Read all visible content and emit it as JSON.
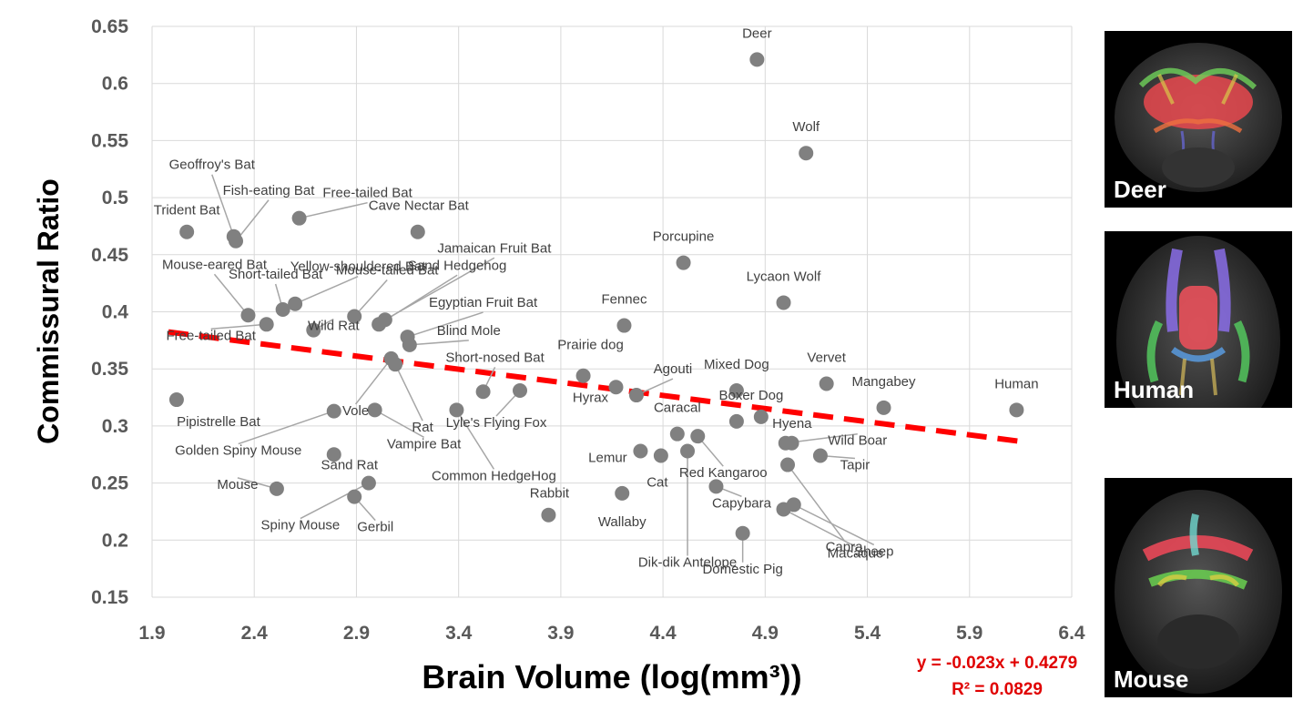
{
  "chart_data": {
    "type": "scatter",
    "xlabel": "Brain Volume (log(mm³))",
    "ylabel": "Commissural Ratio",
    "xlim": [
      1.9,
      6.4
    ],
    "ylim": [
      0.15,
      0.65
    ],
    "x_ticks": [
      "1.9",
      "2.4",
      "2.9",
      "3.4",
      "3.9",
      "4.4",
      "4.9",
      "5.4",
      "5.9",
      "6.4"
    ],
    "y_ticks": [
      "0.15",
      "0.2",
      "0.25",
      "0.3",
      "0.35",
      "0.4",
      "0.45",
      "0.5",
      "0.55",
      "0.6",
      "0.65"
    ],
    "grid": true,
    "point_color": "#808080",
    "trendline": {
      "slope": -0.023,
      "intercept": 0.4279,
      "x_range": [
        1.98,
        6.14
      ],
      "color": "#ff0000",
      "style": "dashed",
      "equation": "y = -0.023x + 0.4279",
      "r2": "R² = 0.0829"
    },
    "points": [
      {
        "name": "Deer",
        "x": 4.86,
        "y": 0.621
      },
      {
        "name": "Wolf",
        "x": 5.1,
        "y": 0.539
      },
      {
        "name": "Porcupine",
        "x": 4.5,
        "y": 0.443
      },
      {
        "name": "Lycaon Wolf",
        "x": 4.99,
        "y": 0.408
      },
      {
        "name": "Fennec",
        "x": 4.21,
        "y": 0.388
      },
      {
        "name": "Prairie dog",
        "x": 4.01,
        "y": 0.344
      },
      {
        "name": "Hyrax",
        "x": 4.17,
        "y": 0.334
      },
      {
        "name": "Agouti",
        "x": 4.27,
        "y": 0.327
      },
      {
        "name": "Mixed Dog",
        "x": 4.76,
        "y": 0.331
      },
      {
        "name": "Boxer Dog",
        "x": 4.76,
        "y": 0.304
      },
      {
        "name": "Hyena",
        "x": 4.88,
        "y": 0.308
      },
      {
        "name": "Vervet",
        "x": 5.2,
        "y": 0.337
      },
      {
        "name": "Mangabey",
        "x": 5.48,
        "y": 0.316
      },
      {
        "name": "Human",
        "x": 6.13,
        "y": 0.314
      },
      {
        "name": "Caracal",
        "x": 4.47,
        "y": 0.293
      },
      {
        "name": "Red Kangaroo",
        "x": 4.57,
        "y": 0.291
      },
      {
        "name": "Lemur",
        "x": 4.29,
        "y": 0.278
      },
      {
        "name": "Cat",
        "x": 4.39,
        "y": 0.274
      },
      {
        "name": "Dik-dik Antelope",
        "x": 4.52,
        "y": 0.278
      },
      {
        "name": "Wild Boar",
        "x": 5.0,
        "y": 0.285
      },
      {
        "name": "Wild Boar (2)",
        "x": 5.03,
        "y": 0.285
      },
      {
        "name": "Tapir",
        "x": 5.17,
        "y": 0.274
      },
      {
        "name": "Capra",
        "x": 5.01,
        "y": 0.266
      },
      {
        "name": "Capybara",
        "x": 4.66,
        "y": 0.247
      },
      {
        "name": "Wallaby",
        "x": 4.2,
        "y": 0.241
      },
      {
        "name": "Sheep",
        "x": 5.04,
        "y": 0.231
      },
      {
        "name": "Macaque",
        "x": 4.99,
        "y": 0.227
      },
      {
        "name": "Domestic Pig",
        "x": 4.79,
        "y": 0.206
      },
      {
        "name": "Rabbit",
        "x": 3.84,
        "y": 0.222
      },
      {
        "name": "Trident Bat",
        "x": 2.07,
        "y": 0.47
      },
      {
        "name": "Geoffroy's Bat",
        "x": 2.3,
        "y": 0.466
      },
      {
        "name": "Fish-eating Bat",
        "x": 2.31,
        "y": 0.462
      },
      {
        "name": "Free-tailed Bat",
        "x": 2.62,
        "y": 0.482
      },
      {
        "name": "Cave Nectar Bat",
        "x": 3.2,
        "y": 0.47
      },
      {
        "name": "Mouse-eared Bat",
        "x": 2.37,
        "y": 0.397
      },
      {
        "name": "Short-tailed Bat",
        "x": 2.54,
        "y": 0.402
      },
      {
        "name": "Yellow-shouldered Bat",
        "x": 2.6,
        "y": 0.407
      },
      {
        "name": "Mouse-tailed Bat",
        "x": 2.89,
        "y": 0.396
      },
      {
        "name": "Jamaican Fruit Bat",
        "x": 3.04,
        "y": 0.393
      },
      {
        "name": "Sand Hedgehog",
        "x": 3.01,
        "y": 0.389
      },
      {
        "name": "Egyptian Fruit Bat",
        "x": 3.15,
        "y": 0.378
      },
      {
        "name": "Blind Mole",
        "x": 3.16,
        "y": 0.371
      },
      {
        "name": "Free-tailed Bat (2)",
        "x": 2.46,
        "y": 0.389
      },
      {
        "name": "Wild Rat",
        "x": 2.69,
        "y": 0.384
      },
      {
        "name": "Vole",
        "x": 3.07,
        "y": 0.359
      },
      {
        "name": "Rat",
        "x": 3.09,
        "y": 0.354
      },
      {
        "name": "Short-nosed Bat",
        "x": 3.52,
        "y": 0.33
      },
      {
        "name": "Lyle's Flying Fox",
        "x": 3.7,
        "y": 0.331
      },
      {
        "name": "Common HedgeHog",
        "x": 3.39,
        "y": 0.314
      },
      {
        "name": "Pipistrelle Bat",
        "x": 2.02,
        "y": 0.323
      },
      {
        "name": "Golden Spiny Mouse",
        "x": 2.79,
        "y": 0.313
      },
      {
        "name": "Vampire Bat",
        "x": 2.99,
        "y": 0.314
      },
      {
        "name": "Sand Rat",
        "x": 2.79,
        "y": 0.275
      },
      {
        "name": "Spiny Mouse",
        "x": 2.96,
        "y": 0.25
      },
      {
        "name": "Gerbil",
        "x": 2.89,
        "y": 0.238
      },
      {
        "name": "Mouse",
        "x": 2.51,
        "y": 0.245
      }
    ],
    "labels": [
      "Deer",
      "Wolf",
      "Porcupine",
      "Lycaon Wolf",
      "Fennec",
      "Prairie dog",
      "Hyrax",
      "Agouti",
      "Mixed Dog",
      "Boxer Dog",
      "Hyena",
      "Vervet",
      "Mangabey",
      "Human",
      "Caracal",
      "Red Kangaroo",
      "Lemur",
      "Cat",
      "Dik-dik Antelope",
      "Wild Boar",
      "Tapir",
      "Capra",
      "Capybara",
      "Wallaby",
      "Sheep",
      "Macaque",
      "Domestic Pig",
      "Rabbit",
      "Trident Bat",
      "Geoffroy's Bat",
      "Fish-eating Bat",
      "Free-tailed Bat",
      "Cave Nectar Bat",
      "Mouse-eared Bat",
      "Short-tailed Bat",
      "Yellow-shouldered Bat",
      "Mouse-tailed Bat",
      "Jamaican Fruit Bat",
      "Sand Hedgehog",
      "Egyptian Fruit Bat",
      "Blind Mole",
      "Free-tailed Bat",
      "Wild Rat",
      "Vole",
      "Rat",
      "Short-nosed Bat",
      "Lyle's Flying Fox",
      "Common HedgeHog",
      "Pipistrelle Bat",
      "Golden Spiny Mouse",
      "Vampire Bat",
      "Sand Rat",
      "Spiny Mouse",
      "Gerbil",
      "Mouse"
    ]
  },
  "panels": [
    {
      "label": "Deer"
    },
    {
      "label": "Human"
    },
    {
      "label": "Mouse"
    }
  ]
}
